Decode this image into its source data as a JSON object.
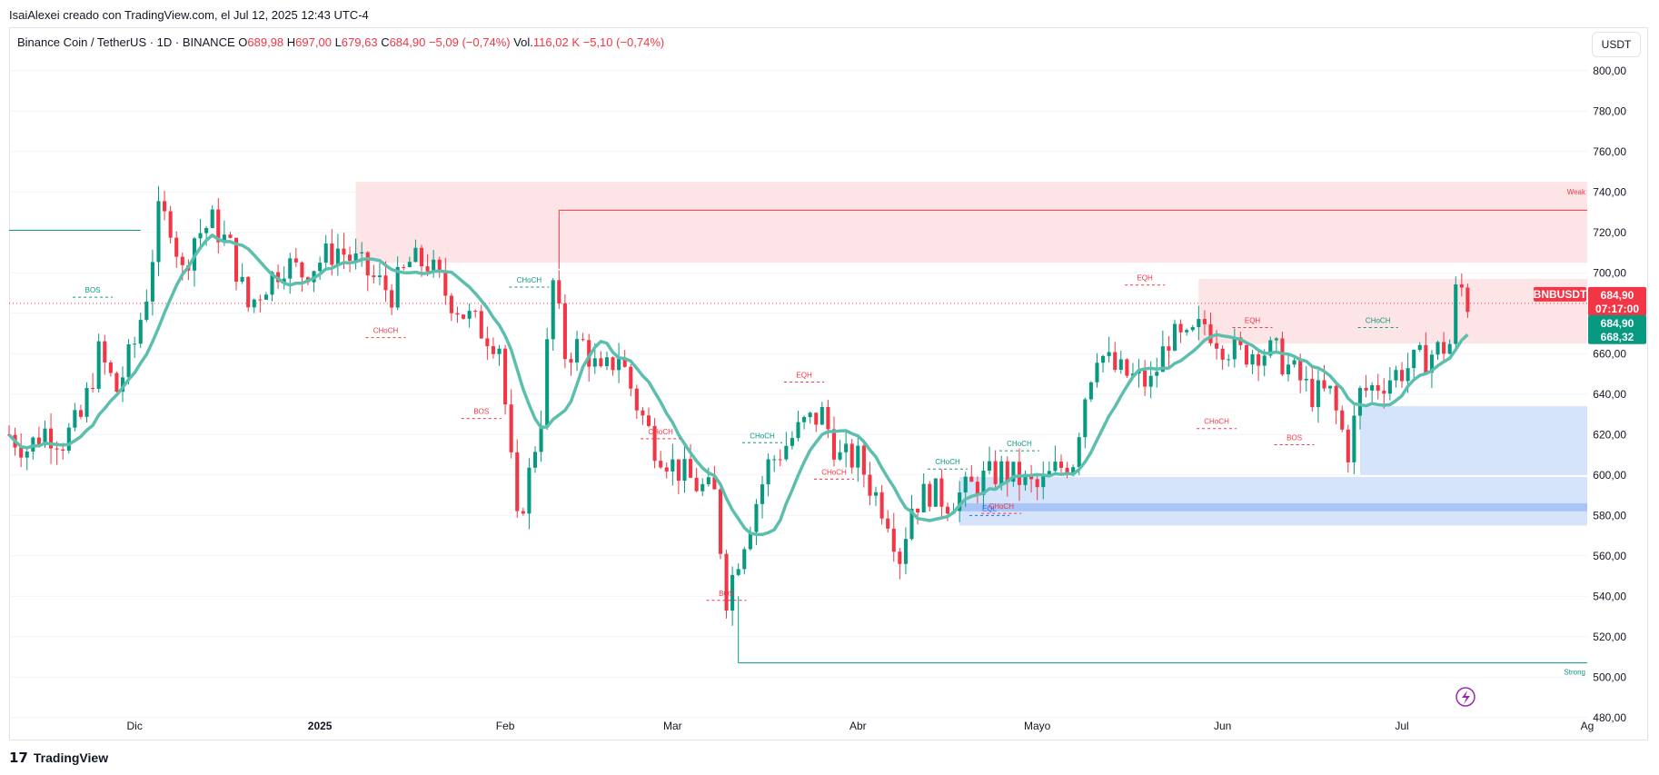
{
  "caption": "IsaiAlexei creado con TradingView.com, el Jul 12, 2025 12:43 UTC-4",
  "legend": {
    "symbol": "Binance Coin / TetherUS · 1D · BINANCE",
    "o_label": "O",
    "o_value": "689,98",
    "h_label": "H",
    "h_value": "697,00",
    "l_label": "L",
    "l_value": "679,63",
    "c_label": "C",
    "c_value": "684,90",
    "change": "−5,09 (−0,74%)",
    "vol_label": "Vol.",
    "vol_value": "116,02 K",
    "vol_change": "−5,10 (−0,74%)"
  },
  "currency_button": "USDT",
  "footer_brand": "TradingView",
  "colors": {
    "up": "#089981",
    "down": "#f23645",
    "ma": "#5cbfad",
    "supply": "#fde4e6",
    "demand": "#d6e4fb",
    "demand_strong": "#a9c5f6",
    "grid": "#f0f3fa"
  },
  "chart_data": {
    "type": "candlestick",
    "title": "Binance Coin / TetherUS · 1D · BINANCE",
    "ylim": [
      470,
      808
    ],
    "y_ticks": [
      "800,00",
      "780,00",
      "760,00",
      "740,00",
      "720,00",
      "700,00",
      "680,00",
      "660,00",
      "640,00",
      "620,00",
      "600,00",
      "580,00",
      "560,00",
      "540,00",
      "520,00",
      "500,00",
      "480,00"
    ],
    "x_labels": [
      {
        "label": "Dic",
        "date": "2024-12-01"
      },
      {
        "label": "2025",
        "date": "2025-01-01",
        "bold": true
      },
      {
        "label": "Feb",
        "date": "2025-02-01"
      },
      {
        "label": "Mar",
        "date": "2025-03-01"
      },
      {
        "label": "Abr",
        "date": "2025-04-01"
      },
      {
        "label": "Mayo",
        "date": "2025-05-01"
      },
      {
        "label": "Jun",
        "date": "2025-06-01"
      },
      {
        "label": "Jul",
        "date": "2025-07-01"
      },
      {
        "label": "Ag",
        "date": "2025-08-01"
      }
    ],
    "x_range": [
      "2024-11-10",
      "2025-08-01"
    ],
    "series": [
      {
        "name": "BNBUSDT",
        "ohlc_close_path": [
          [
            "2024-11-10",
            620
          ],
          [
            "2024-11-13",
            613
          ],
          [
            "2024-11-16",
            622
          ],
          [
            "2024-11-19",
            617
          ],
          [
            "2024-11-22",
            628
          ],
          [
            "2024-11-25",
            660
          ],
          [
            "2024-11-28",
            642
          ],
          [
            "2024-12-01",
            665
          ],
          [
            "2024-12-03",
            690
          ],
          [
            "2024-12-05",
            728
          ],
          [
            "2024-12-07",
            725
          ],
          [
            "2024-12-09",
            700
          ],
          [
            "2024-12-11",
            718
          ],
          [
            "2024-12-14",
            725
          ],
          [
            "2024-12-17",
            712
          ],
          [
            "2024-12-20",
            683
          ],
          [
            "2024-12-23",
            695
          ],
          [
            "2024-12-26",
            705
          ],
          [
            "2024-12-29",
            700
          ],
          [
            "2025-01-01",
            706
          ],
          [
            "2025-01-04",
            712
          ],
          [
            "2025-01-07",
            705
          ],
          [
            "2025-01-10",
            697
          ],
          [
            "2025-01-13",
            690
          ],
          [
            "2025-01-16",
            705
          ],
          [
            "2025-01-19",
            705
          ],
          [
            "2025-01-22",
            690
          ],
          [
            "2025-01-25",
            680
          ],
          [
            "2025-01-28",
            672
          ],
          [
            "2025-01-31",
            665
          ],
          [
            "2025-02-03",
            575
          ],
          [
            "2025-02-05",
            600
          ],
          [
            "2025-02-07",
            630
          ],
          [
            "2025-02-09",
            695
          ],
          [
            "2025-02-11",
            660
          ],
          [
            "2025-02-14",
            665
          ],
          [
            "2025-02-17",
            648
          ],
          [
            "2025-02-20",
            660
          ],
          [
            "2025-02-23",
            635
          ],
          [
            "2025-02-26",
            615
          ],
          [
            "2025-03-01",
            605
          ],
          [
            "2025-03-03",
            600
          ],
          [
            "2025-03-05",
            595
          ],
          [
            "2025-03-08",
            590
          ],
          [
            "2025-03-10",
            540
          ],
          [
            "2025-03-12",
            560
          ],
          [
            "2025-03-14",
            578
          ],
          [
            "2025-03-17",
            605
          ],
          [
            "2025-03-20",
            615
          ],
          [
            "2025-03-23",
            625
          ],
          [
            "2025-03-26",
            630
          ],
          [
            "2025-03-29",
            608
          ],
          [
            "2025-04-01",
            608
          ],
          [
            "2025-04-03",
            595
          ],
          [
            "2025-04-06",
            580
          ],
          [
            "2025-04-08",
            560
          ],
          [
            "2025-04-10",
            585
          ],
          [
            "2025-04-13",
            592
          ],
          [
            "2025-04-16",
            587
          ],
          [
            "2025-04-19",
            592
          ],
          [
            "2025-04-22",
            598
          ],
          [
            "2025-04-25",
            602
          ],
          [
            "2025-04-28",
            598
          ],
          [
            "2025-05-01",
            593
          ],
          [
            "2025-05-04",
            602
          ],
          [
            "2025-05-07",
            608
          ],
          [
            "2025-05-09",
            640
          ],
          [
            "2025-05-11",
            662
          ],
          [
            "2025-05-14",
            652
          ],
          [
            "2025-05-17",
            648
          ],
          [
            "2025-05-20",
            645
          ],
          [
            "2025-05-23",
            668
          ],
          [
            "2025-05-26",
            665
          ],
          [
            "2025-05-29",
            675
          ],
          [
            "2025-06-01",
            665
          ],
          [
            "2025-06-04",
            660
          ],
          [
            "2025-06-07",
            662
          ],
          [
            "2025-06-10",
            660
          ],
          [
            "2025-06-13",
            650
          ],
          [
            "2025-06-16",
            640
          ],
          [
            "2025-06-19",
            640
          ],
          [
            "2025-06-22",
            612
          ],
          [
            "2025-06-24",
            640
          ],
          [
            "2025-06-27",
            645
          ],
          [
            "2025-06-30",
            650
          ],
          [
            "2025-07-03",
            655
          ],
          [
            "2025-07-06",
            660
          ],
          [
            "2025-07-09",
            665
          ],
          [
            "2025-07-10",
            690
          ],
          [
            "2025-07-11",
            692
          ],
          [
            "2025-07-12",
            684.9
          ]
        ]
      },
      {
        "name": "MA"
      }
    ],
    "zones": [
      {
        "name": "supply-upper",
        "from": "2025-01-07",
        "to": "2025-08-01",
        "y0": 705,
        "y1": 745,
        "color": "supply",
        "label": "Weak"
      },
      {
        "name": "supply-lower",
        "from": "2025-05-28",
        "to": "2025-08-01",
        "y0": 665,
        "y1": 697,
        "color": "supply"
      },
      {
        "name": "demand-right",
        "from": "2025-06-24",
        "to": "2025-08-01",
        "y0": 600,
        "y1": 634,
        "color": "demand"
      },
      {
        "name": "demand-lower",
        "from": "2025-04-18",
        "to": "2025-08-01",
        "y0": 575,
        "y1": 599,
        "color": "demand"
      }
    ],
    "lines": [
      {
        "name": "weak-high-line",
        "from": "2025-02-10",
        "to": "2025-08-01",
        "y": 731,
        "color": "#f23645"
      },
      {
        "name": "strong-low-line",
        "from": "2025-03-12",
        "to": "2025-08-01",
        "y": 507,
        "color": "#089981",
        "label": "Strong"
      },
      {
        "name": "old-high-line",
        "from": "2024-11-10",
        "to": "2024-12-02",
        "y": 721,
        "color": "#089981"
      }
    ],
    "annotations": [
      {
        "text": "BOS",
        "x": "2024-11-24",
        "y": 692,
        "color": "#089981"
      },
      {
        "text": "CHoCH",
        "x": "2025-01-12",
        "y": 672,
        "color": "#f23645"
      },
      {
        "text": "CHoCH",
        "x": "2025-02-05",
        "y": 697,
        "color": "#089981"
      },
      {
        "text": "BOS",
        "x": "2025-01-28",
        "y": 632,
        "color": "#f23645"
      },
      {
        "text": "CHoCH",
        "x": "2025-02-27",
        "y": 622,
        "color": "#f23645"
      },
      {
        "text": "CHoCH",
        "x": "2025-03-16",
        "y": 620,
        "color": "#089981"
      },
      {
        "text": "BOS",
        "x": "2025-03-10",
        "y": 542,
        "color": "#f23645"
      },
      {
        "text": "EQH",
        "x": "2025-03-23",
        "y": 650,
        "color": "#f23645"
      },
      {
        "text": "CHoCH",
        "x": "2025-03-28",
        "y": 602,
        "color": "#f23645"
      },
      {
        "text": "CHoCH",
        "x": "2025-04-16",
        "y": 607,
        "color": "#089981"
      },
      {
        "text": "CHoCH",
        "x": "2025-04-28",
        "y": 616,
        "color": "#089981"
      },
      {
        "text": "EQL",
        "x": "2025-04-23",
        "y": 584,
        "color": "#2962ff"
      },
      {
        "text": "CHoCH",
        "x": "2025-04-25",
        "y": 585,
        "color": "#f23645"
      },
      {
        "text": "EQH",
        "x": "2025-05-19",
        "y": 698,
        "color": "#f23645"
      },
      {
        "text": "CHoCH",
        "x": "2025-05-31",
        "y": 627,
        "color": "#f23645"
      },
      {
        "text": "EQH",
        "x": "2025-06-06",
        "y": 677,
        "color": "#f23645"
      },
      {
        "text": "CHoCH",
        "x": "2025-06-27",
        "y": 677,
        "color": "#089981"
      },
      {
        "text": "BOS",
        "x": "2025-06-13",
        "y": 619,
        "color": "#f23645"
      }
    ],
    "price_labels": [
      {
        "text": "684,90",
        "sub": "07:17:00",
        "y": 684.9,
        "color": "#f23645",
        "badge": "BNBUSDT"
      },
      {
        "text": "684,90",
        "y": 684.9,
        "color": "#089981"
      },
      {
        "text": "668,32",
        "y": 668.32,
        "color": "#089981"
      }
    ]
  }
}
